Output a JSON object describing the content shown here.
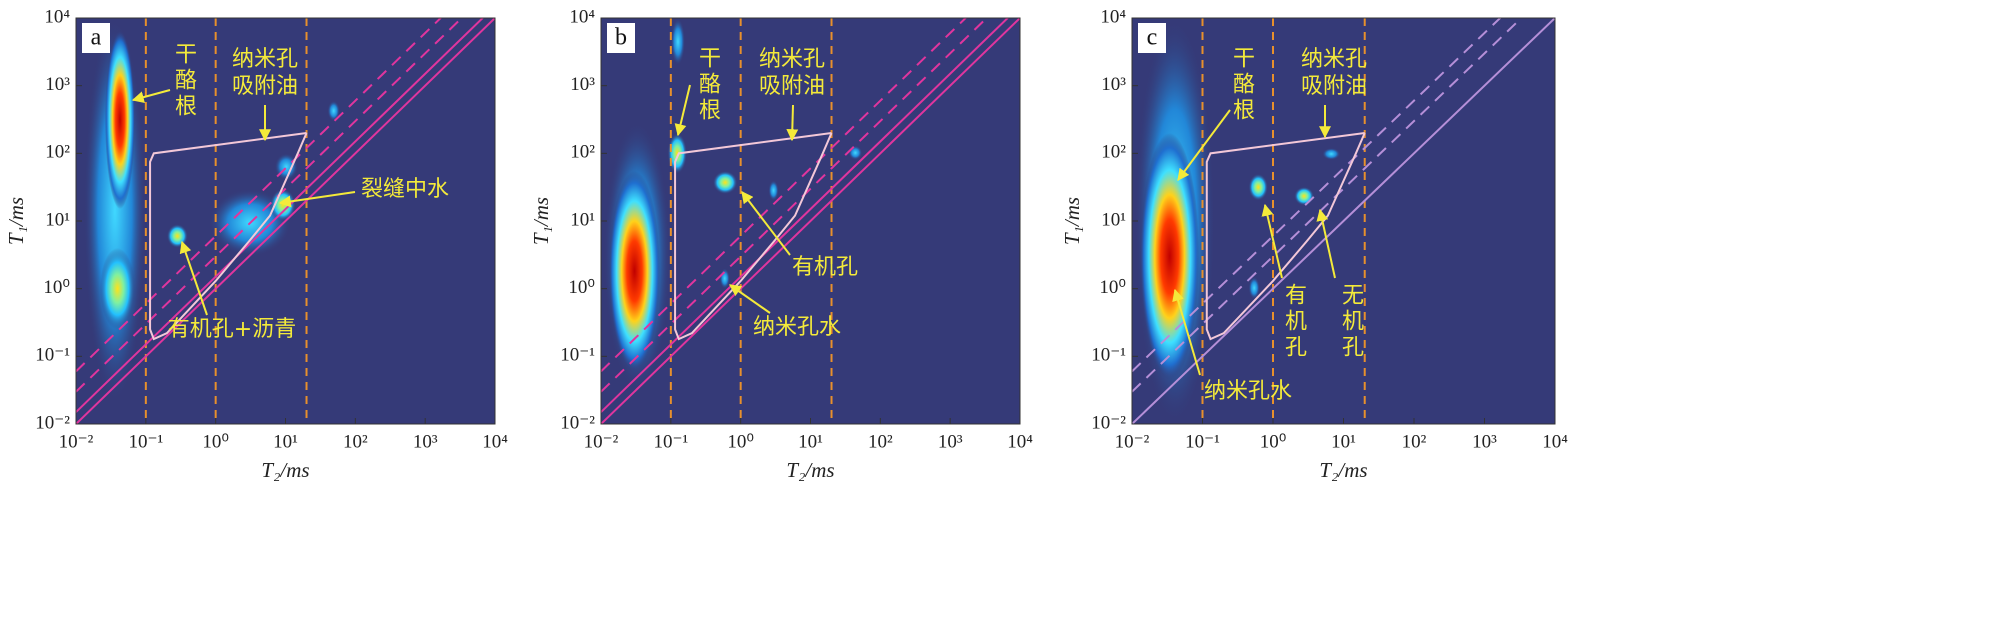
{
  "chart_data": [
    {
      "type": "t1t2-map",
      "label": "a",
      "x_label": "T₂/ms",
      "y_label": "T₁/ms",
      "log_scale": true,
      "xlim": [
        0.01,
        10000
      ],
      "ylim": [
        0.01,
        10000
      ],
      "xticks": [
        {
          "value": 0.01,
          "label": "10⁻²"
        },
        {
          "value": 0.1,
          "label": "10⁻¹"
        },
        {
          "value": 1,
          "label": "10⁰"
        },
        {
          "value": 10,
          "label": "10¹"
        },
        {
          "value": 100,
          "label": "10²"
        },
        {
          "value": 1000,
          "label": "10³"
        },
        {
          "value": 10000,
          "label": "10⁴"
        }
      ],
      "yticks": [
        {
          "value": 0.01,
          "label": "10⁻²"
        },
        {
          "value": 0.1,
          "label": "10⁻¹"
        },
        {
          "value": 1,
          "label": "10⁰"
        },
        {
          "value": 10,
          "label": "10¹"
        },
        {
          "value": 100,
          "label": "10²"
        },
        {
          "value": 1000,
          "label": "10³"
        },
        {
          "value": 10000,
          "label": "10⁴"
        }
      ],
      "vlines": [
        0.1,
        1,
        20
      ],
      "solid_ratios": [
        1,
        1.5
      ],
      "dashed_ratios": [
        3,
        6
      ],
      "diagonal_color": "#e0359e",
      "region": {
        "x": [
          20,
          0.13,
          0.115,
          0.115,
          0.13,
          0.2,
          1,
          3,
          6,
          15,
          20
        ],
        "y": [
          200,
          100,
          75,
          0.25,
          0.18,
          0.22,
          1.3,
          5,
          12,
          100,
          200
        ]
      },
      "peaks": [
        {
          "x_range": [
            0.013,
            0.1
          ],
          "y_range": [
            0.02,
            10000
          ],
          "intensity": "low"
        },
        {
          "x_range": [
            0.022,
            0.07
          ],
          "y_range": [
            0.25,
            4
          ],
          "intensity": "medium"
        },
        {
          "x_range": [
            0.026,
            0.07
          ],
          "y_range": [
            15,
            6600
          ],
          "intensity": "high"
        },
        {
          "x_range": [
            0.2,
            0.4
          ],
          "y_range": [
            4,
            9
          ],
          "intensity": "medium"
        },
        {
          "x_range": [
            0.8,
            12
          ],
          "y_range": [
            3,
            30
          ],
          "intensity": "low"
        },
        {
          "x_range": [
            6,
            14
          ],
          "y_range": [
            10,
            30
          ],
          "intensity": "medium"
        },
        {
          "x_range": [
            7,
            15
          ],
          "y_range": [
            40,
            100
          ],
          "intensity": "low"
        },
        {
          "x_range": [
            40,
            60
          ],
          "y_range": [
            300,
            600
          ],
          "intensity": "low"
        }
      ],
      "annotations": [
        {
          "text": "干酪根"
        },
        {
          "text": [
            "纳米孔",
            "吸附油"
          ]
        },
        {
          "text": "裂缝中水"
        },
        {
          "text": "有机孔+沥青"
        }
      ]
    },
    {
      "type": "t1t2-map",
      "label": "b",
      "x_label": "T₂/ms",
      "y_label": "T₁/ms",
      "log_scale": true,
      "xlim": [
        0.01,
        10000
      ],
      "ylim": [
        0.01,
        10000
      ],
      "xticks": [
        {
          "value": 0.01,
          "label": "10⁻²"
        },
        {
          "value": 0.1,
          "label": "10⁻¹"
        },
        {
          "value": 1,
          "label": "10⁰"
        },
        {
          "value": 10,
          "label": "10¹"
        },
        {
          "value": 100,
          "label": "10²"
        },
        {
          "value": 1000,
          "label": "10³"
        },
        {
          "value": 10000,
          "label": "10⁴"
        }
      ],
      "yticks": [
        {
          "value": 0.01,
          "label": "10⁻²"
        },
        {
          "value": 0.1,
          "label": "10⁻¹"
        },
        {
          "value": 1,
          "label": "10⁰"
        },
        {
          "value": 10,
          "label": "10¹"
        },
        {
          "value": 100,
          "label": "10²"
        },
        {
          "value": 1000,
          "label": "10³"
        },
        {
          "value": 10000,
          "label": "10⁴"
        }
      ],
      "vlines": [
        0.1,
        1,
        20
      ],
      "solid_ratios": [
        1,
        1.5
      ],
      "dashed_ratios": [
        3,
        6
      ],
      "diagonal_color": "#e0359e",
      "region": {
        "x": [
          20,
          0.13,
          0.115,
          0.115,
          0.13,
          0.2,
          1,
          3,
          6,
          15,
          20
        ],
        "y": [
          200,
          100,
          75,
          0.25,
          0.18,
          0.22,
          1.3,
          5,
          12,
          100,
          200
        ]
      },
      "peaks": [
        {
          "x_range": [
            0.011,
            0.1
          ],
          "y_range": [
            0.03,
            300
          ],
          "intensity": "low"
        },
        {
          "x_range": [
            0.013,
            0.07
          ],
          "y_range": [
            0.06,
            55
          ],
          "intensity": "high"
        },
        {
          "x_range": [
            0.1,
            0.16
          ],
          "y_range": [
            2000,
            10000
          ],
          "intensity": "low"
        },
        {
          "x_range": [
            0.09,
            0.17
          ],
          "y_range": [
            50,
            200
          ],
          "intensity": "medium"
        },
        {
          "x_range": [
            0.4,
            0.9
          ],
          "y_range": [
            25,
            55
          ],
          "intensity": "medium"
        },
        {
          "x_range": [
            2.5,
            3.5
          ],
          "y_range": [
            20,
            40
          ],
          "intensity": "low"
        },
        {
          "x_range": [
            0.5,
            0.7
          ],
          "y_range": [
            1,
            2
          ],
          "intensity": "low"
        },
        {
          "x_range": [
            35,
            55
          ],
          "y_range": [
            80,
            130
          ],
          "intensity": "low"
        }
      ],
      "annotations": [
        {
          "text": "干酪根"
        },
        {
          "text": [
            "纳米孔",
            "吸附油"
          ]
        },
        {
          "text": "有机孔"
        },
        {
          "text": "纳米孔水"
        }
      ]
    },
    {
      "type": "t1t2-map",
      "label": "c",
      "x_label": "T₂/ms",
      "y_label": "T₁/ms",
      "log_scale": true,
      "xlim": [
        0.01,
        10000
      ],
      "ylim": [
        0.01,
        10000
      ],
      "xticks": [
        {
          "value": 0.01,
          "label": "10⁻²"
        },
        {
          "value": 0.1,
          "label": "10⁻¹"
        },
        {
          "value": 1,
          "label": "10⁰"
        },
        {
          "value": 10,
          "label": "10¹"
        },
        {
          "value": 100,
          "label": "10²"
        },
        {
          "value": 1000,
          "label": "10³"
        },
        {
          "value": 10000,
          "label": "10⁴"
        }
      ],
      "yticks": [
        {
          "value": 0.01,
          "label": "10⁻²"
        },
        {
          "value": 0.1,
          "label": "10⁻¹"
        },
        {
          "value": 1,
          "label": "10⁰"
        },
        {
          "value": 10,
          "label": "10¹"
        },
        {
          "value": 100,
          "label": "10²"
        },
        {
          "value": 1000,
          "label": "10³"
        },
        {
          "value": 10000,
          "label": "10⁴"
        }
      ],
      "vlines": [
        0.1,
        1,
        20
      ],
      "solid_ratios": [
        1
      ],
      "dashed_ratios": [
        3,
        6
      ],
      "diagonal_color": "#b58fd8",
      "region": {
        "x": [
          20,
          0.13,
          0.115,
          0.115,
          0.13,
          0.2,
          1,
          3,
          6,
          15,
          20
        ],
        "y": [
          200,
          100,
          75,
          0.25,
          0.18,
          0.22,
          1.3,
          5,
          12,
          100,
          200
        ]
      },
      "peaks": [
        {
          "x_range": [
            0.011,
            0.15
          ],
          "y_range": [
            0.01,
            10000
          ],
          "intensity": "low"
        },
        {
          "x_range": [
            0.013,
            0.09
          ],
          "y_range": [
            0.045,
            200
          ],
          "intensity": "high"
        },
        {
          "x_range": [
            0.45,
            0.85
          ],
          "y_range": [
            20,
            50
          ],
          "intensity": "medium"
        },
        {
          "x_range": [
            2,
            3.8
          ],
          "y_range": [
            17,
            32
          ],
          "intensity": "medium"
        },
        {
          "x_range": [
            0.45,
            0.65
          ],
          "y_range": [
            0.7,
            1.5
          ],
          "intensity": "low"
        },
        {
          "x_range": [
            5,
            9
          ],
          "y_range": [
            80,
            120
          ],
          "intensity": "low"
        }
      ],
      "annotations": [
        {
          "text": "干酪根"
        },
        {
          "text": [
            "纳米孔",
            "吸附油"
          ]
        },
        {
          "text": "有机孔"
        },
        {
          "text": "无机孔"
        },
        {
          "text": "纳米孔水"
        }
      ]
    }
  ]
}
